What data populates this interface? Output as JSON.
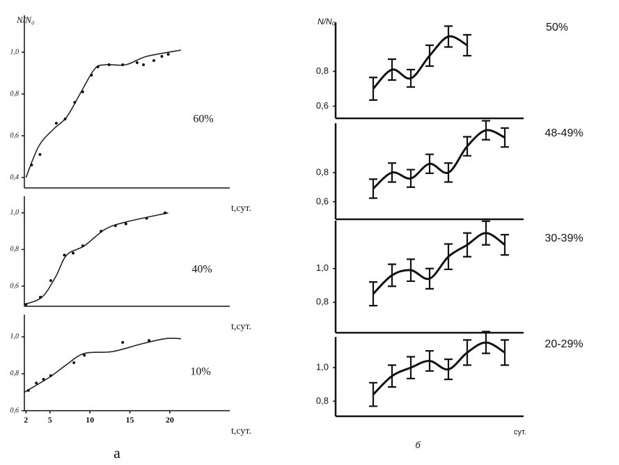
{
  "chart_data": [
    {
      "type": "scatter",
      "ylabel": "N/N₀",
      "label": "60%",
      "xlabel": "t,сут.",
      "xlim": [
        1.8,
        27.5
      ],
      "ylim": [
        0.35,
        1.15
      ],
      "yticks": [
        {
          "value": 0.4,
          "label": "0,4"
        },
        {
          "value": 0.6,
          "label": "0,6"
        },
        {
          "value": 0.8,
          "label": "0,8"
        },
        {
          "value": 1.0,
          "label": "1,0"
        }
      ],
      "x": [
        2.7,
        3.75,
        5.8,
        6.9,
        8.1,
        9.1,
        10.2,
        11,
        12.4,
        14.1,
        15.9,
        16.7,
        18,
        19,
        19.8
      ],
      "values": [
        0.46,
        0.51,
        0.66,
        0.68,
        0.76,
        0.81,
        0.89,
        0.93,
        0.94,
        0.94,
        0.95,
        0.94,
        0.96,
        0.98,
        0.99
      ],
      "curve": {
        "x": [
          2,
          3.6,
          5.4,
          7.1,
          8.9,
          10.6,
          11.9,
          14.5,
          17.1,
          21.4
        ],
        "values": [
          0.4,
          0.55,
          0.63,
          0.69,
          0.81,
          0.92,
          0.94,
          0.94,
          0.98,
          1.01
        ]
      }
    },
    {
      "type": "scatter",
      "label": "40%",
      "xlabel": "t,сут.",
      "xlim": [
        1.8,
        27.5
      ],
      "ylim": [
        0.49,
        1.06
      ],
      "yticks": [
        {
          "value": 0.6,
          "label": "0,6"
        },
        {
          "value": 0.8,
          "label": "0,8"
        },
        {
          "value": 1.0,
          "label": "1,0"
        }
      ],
      "x": [
        2,
        3.8,
        5.1,
        6.8,
        7.9,
        9.1,
        11.4,
        13.2,
        14.5,
        17.1,
        19.4
      ],
      "values": [
        0.5,
        0.54,
        0.63,
        0.77,
        0.78,
        0.82,
        0.9,
        0.93,
        0.94,
        0.97,
        1.0
      ],
      "curve": {
        "x": [
          1.8,
          4,
          5.7,
          7.1,
          9.3,
          11.9,
          14.5,
          19.8
        ],
        "values": [
          0.5,
          0.54,
          0.65,
          0.77,
          0.82,
          0.91,
          0.95,
          1.0
        ]
      }
    },
    {
      "type": "scatter",
      "label": "10%",
      "xlabel": "t,сут.",
      "caption": "а",
      "xlim": [
        1.8,
        27.5
      ],
      "ylim": [
        0.6,
        1.09
      ],
      "xticks": [
        2,
        5,
        10,
        15,
        20
      ],
      "yticks": [
        {
          "value": 0.6,
          "label": "0,6"
        },
        {
          "value": 0.8,
          "label": "0,8"
        },
        {
          "value": 1.0,
          "label": "1,0"
        }
      ],
      "x": [
        2.3,
        3.3,
        4.2,
        5.1,
        8,
        9.3,
        14.1,
        17.4
      ],
      "values": [
        0.71,
        0.75,
        0.77,
        0.79,
        0.86,
        0.9,
        0.97,
        0.98
      ],
      "curve": {
        "x": [
          1.8,
          4.9,
          7.1,
          9.3,
          12.8,
          16.3,
          19.4,
          21.4
        ],
        "values": [
          0.7,
          0.78,
          0.85,
          0.91,
          0.92,
          0.96,
          0.99,
          0.99
        ]
      }
    },
    {
      "type": "errorbar",
      "ylabel": "N/N₀",
      "label": "50%",
      "categories": [
        null,
        null,
        null,
        null,
        null,
        null,
        null,
        null
      ],
      "ylim": [
        0.53,
        1.05
      ],
      "yticks": [
        {
          "value": 0.6,
          "label": "0,6"
        },
        {
          "value": 0.8,
          "label": "0,8"
        }
      ],
      "values": [
        0.7,
        0.81,
        0.76,
        0.89,
        1.0,
        0.95,
        null,
        null
      ],
      "errors": [
        0.065,
        0.06,
        0.05,
        0.06,
        0.06,
        0.06,
        null,
        null
      ]
    },
    {
      "type": "errorbar",
      "label": "48-49%",
      "categories": [
        null,
        null,
        null,
        null,
        null,
        null,
        null,
        null
      ],
      "ylim": [
        0.48,
        1.1
      ],
      "yticks": [
        {
          "value": 0.6,
          "label": "0,6"
        },
        {
          "value": 0.8,
          "label": "0,8"
        }
      ],
      "values": [
        0.69,
        0.8,
        0.76,
        0.86,
        0.8,
        0.98,
        1.09,
        1.04
      ],
      "errors": [
        0.065,
        0.065,
        0.06,
        0.065,
        0.065,
        0.065,
        0.065,
        0.065
      ]
    },
    {
      "type": "errorbar",
      "label": "30-39%",
      "categories": [
        null,
        null,
        null,
        null,
        null,
        null,
        null,
        null
      ],
      "ylim": [
        0.62,
        1.25
      ],
      "yticks": [
        {
          "value": 0.8,
          "label": "0,8"
        },
        {
          "value": 1.0,
          "label": "1,0"
        }
      ],
      "values": [
        0.85,
        0.96,
        0.99,
        0.94,
        1.07,
        1.14,
        1.21,
        1.14
      ],
      "errors": [
        0.07,
        0.065,
        0.065,
        0.06,
        0.075,
        0.07,
        0.07,
        0.06
      ]
    },
    {
      "type": "errorbar",
      "label": "20-29%",
      "xlabel": "сут.",
      "caption": "б",
      "categories": [
        null,
        null,
        null,
        null,
        null,
        null,
        null,
        null
      ],
      "ylim": [
        0.71,
        1.15
      ],
      "yticks": [
        {
          "value": 0.8,
          "label": "0,8"
        },
        {
          "value": 1.0,
          "label": "1,0"
        }
      ],
      "values": [
        0.84,
        0.95,
        1.0,
        1.04,
        0.99,
        1.09,
        1.15,
        1.09
      ],
      "errors": [
        0.07,
        0.065,
        0.065,
        0.06,
        0.06,
        0.075,
        0.065,
        0.075
      ]
    }
  ]
}
